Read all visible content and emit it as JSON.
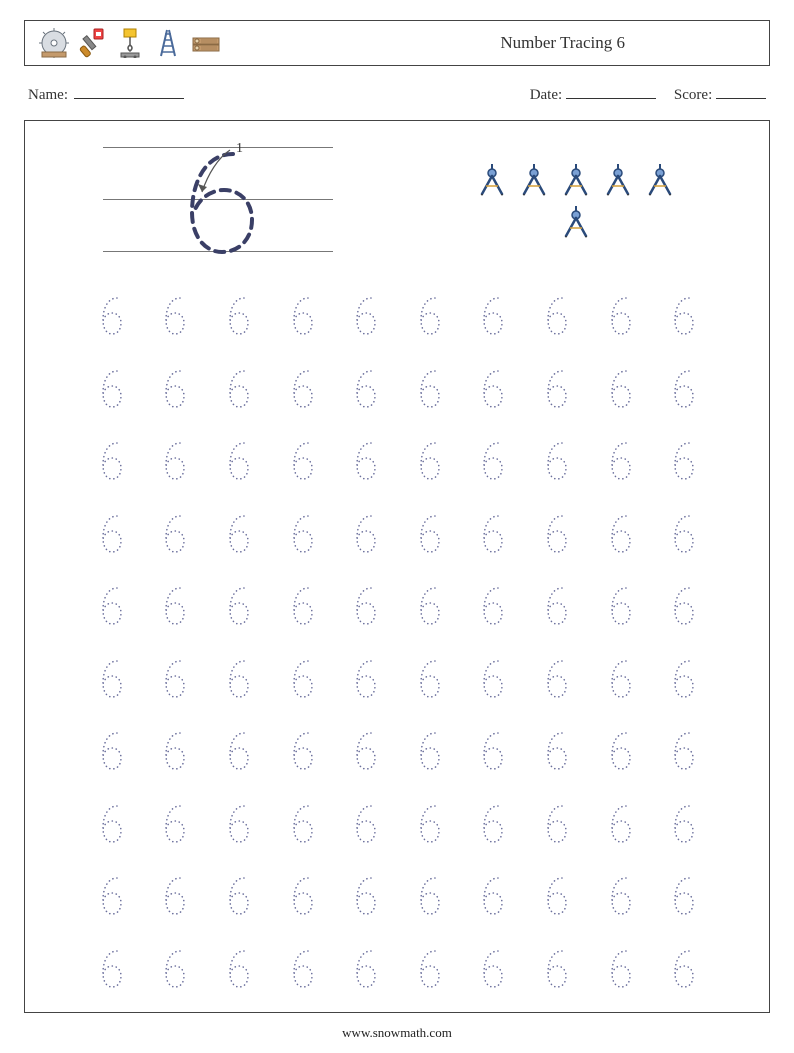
{
  "header": {
    "title": "Number Tracing 6",
    "icons": [
      "saw-blade-icon",
      "pipe-wrench-icon",
      "hoist-icon",
      "ladder-icon",
      "lumber-icon"
    ]
  },
  "form": {
    "name_label": "Name:",
    "date_label": "Date:",
    "score_label": "Score:"
  },
  "demo": {
    "digit": "6",
    "stroke_label": "1",
    "count": 6,
    "count_icon": "compass-icon",
    "guide_line_color": "#777777",
    "dash_color": "#3a3f66"
  },
  "practice": {
    "digit": "6",
    "rows": 10,
    "cols": 10,
    "trace_color": "#6b6f9c",
    "dot_style": "dotted"
  },
  "colors": {
    "border": "#444444",
    "text": "#222222",
    "bg": "#ffffff"
  },
  "footer": {
    "url": "www.snowmath.com"
  }
}
